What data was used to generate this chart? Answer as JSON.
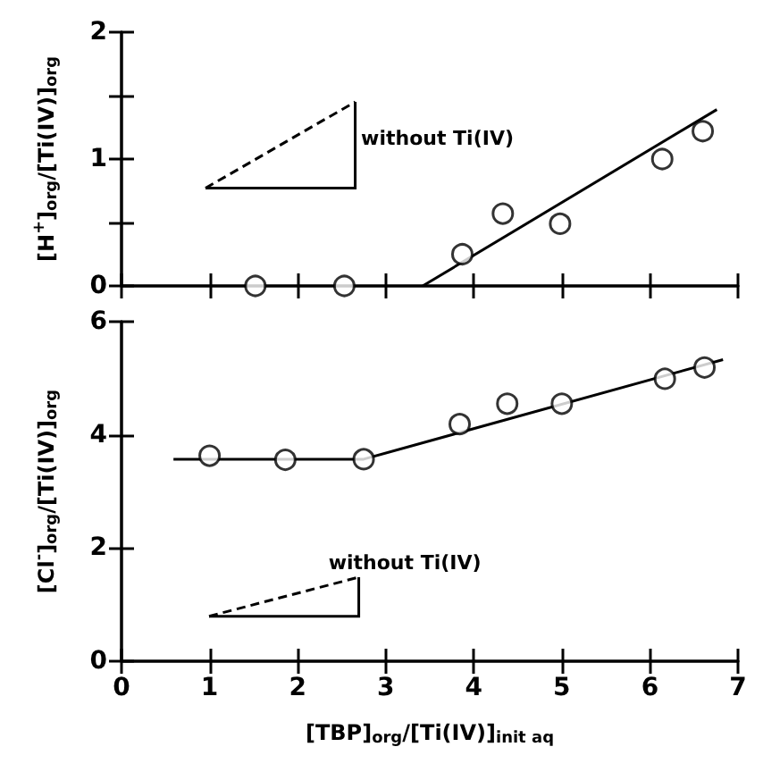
{
  "chart_data": [
    {
      "type": "scatter",
      "ylabel": "[H$^{+}$]$_{org}$/[Ti(IV)]$_{org}$",
      "xlim": [
        0,
        7
      ],
      "xticks": [
        0,
        1,
        2,
        3,
        4,
        5,
        6,
        7
      ],
      "ylim": [
        0,
        2
      ],
      "yticks": [
        0,
        {
          "value": 0.5,
          "label": null
        },
        1,
        {
          "value": 1.5,
          "label": null
        },
        2
      ],
      "tick_labels": "y",
      "annotations": [
        "without Ti(IV)"
      ],
      "series": [
        {
          "type": "scatter",
          "marker": "circle",
          "color": "#000000",
          "x": [
            1.52,
            2.53,
            3.87,
            4.33,
            4.98,
            6.14,
            6.6
          ],
          "values": [
            0,
            0,
            0.25,
            0.57,
            0.49,
            1.0,
            1.22
          ]
        },
        {
          "type": "line",
          "marker": "none",
          "color": "#000000",
          "x": [
            3.42,
            6.76
          ],
          "values": [
            0,
            1.39
          ]
        }
      ]
    },
    {
      "type": "scatter",
      "ylabel": "[Cl$^{-}$]$_{org}$/[Ti(IV)]$_{org}$",
      "xlabel": "[TBP]$_{org}$/[Ti(IV)]$_{init aq}$",
      "xlim": [
        0,
        7
      ],
      "xticks": [
        0,
        1,
        2,
        3,
        4,
        5,
        6,
        7
      ],
      "ylim": [
        0,
        6
      ],
      "yticks": [
        0,
        2,
        4,
        6
      ],
      "annotations": [
        "without Ti(IV)"
      ],
      "series": [
        {
          "type": "scatter",
          "marker": "circle",
          "color": "#000000",
          "x": [
            1.0,
            1.86,
            2.75,
            3.84,
            4.38,
            5.0,
            6.17,
            6.62
          ],
          "values": [
            3.63,
            3.56,
            3.57,
            4.19,
            4.55,
            4.55,
            4.99,
            5.19
          ]
        },
        {
          "type": "line",
          "marker": "none",
          "color": "#000000",
          "x": [
            0.59,
            2.75,
            6.83
          ],
          "values": [
            3.57,
            3.57,
            5.33
          ]
        }
      ]
    }
  ]
}
